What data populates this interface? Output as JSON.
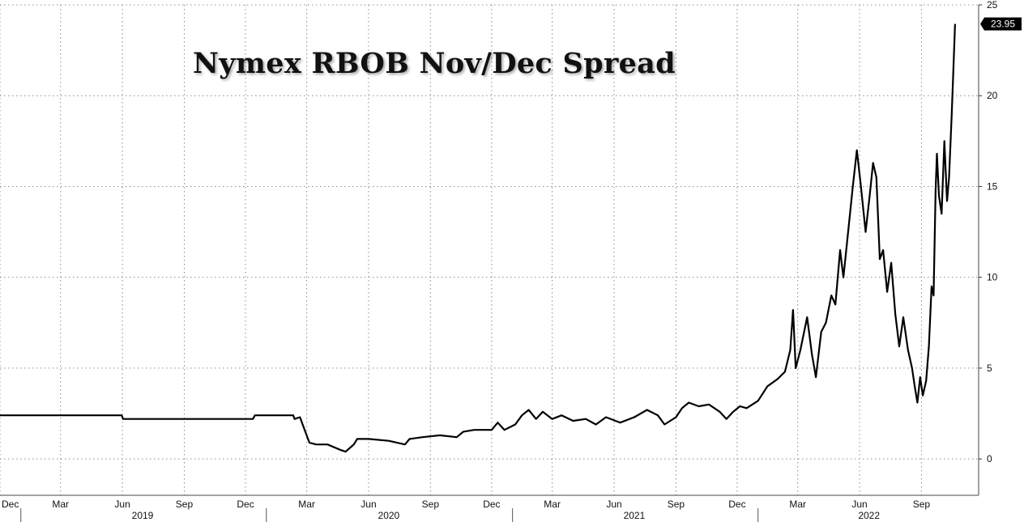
{
  "chart_data": {
    "type": "line",
    "title": "Nymex RBOB Nov/Dec Spread",
    "ylim": [
      -2,
      25
    ],
    "y_ticks": [
      0,
      5,
      10,
      15,
      20,
      25
    ],
    "x_range": [
      "2018-12-01",
      "2022-11-25"
    ],
    "x_month_ticks": [
      {
        "date": "2018-12-01",
        "label": "Dec"
      },
      {
        "date": "2019-03-01",
        "label": "Mar"
      },
      {
        "date": "2019-06-01",
        "label": "Jun"
      },
      {
        "date": "2019-09-01",
        "label": "Sep"
      },
      {
        "date": "2019-12-01",
        "label": "Dec"
      },
      {
        "date": "2020-03-01",
        "label": "Mar"
      },
      {
        "date": "2020-06-01",
        "label": "Jun"
      },
      {
        "date": "2020-09-01",
        "label": "Sep"
      },
      {
        "date": "2020-12-01",
        "label": "Dec"
      },
      {
        "date": "2021-03-01",
        "label": "Mar"
      },
      {
        "date": "2021-06-01",
        "label": "Jun"
      },
      {
        "date": "2021-09-01",
        "label": "Sep"
      },
      {
        "date": "2021-12-01",
        "label": "Dec"
      },
      {
        "date": "2022-03-01",
        "label": "Mar"
      },
      {
        "date": "2022-06-01",
        "label": "Jun"
      },
      {
        "date": "2022-09-01",
        "label": "Sep"
      }
    ],
    "x_year_labels": [
      {
        "label": "2019",
        "center": "2019-07-01"
      },
      {
        "label": "2020",
        "center": "2020-07-01"
      },
      {
        "label": "2021",
        "center": "2021-07-01"
      },
      {
        "label": "2022",
        "center": "2022-06-15"
      }
    ],
    "x_year_separators": [
      "2019-01-01",
      "2020-01-01",
      "2021-01-01",
      "2022-01-01"
    ],
    "grid": true,
    "last_value_label": "23.95",
    "series": [
      {
        "color": "#000000",
        "points": [
          [
            "2018-12-01",
            2.4
          ],
          [
            "2019-05-31",
            2.4
          ],
          [
            "2019-06-02",
            2.2
          ],
          [
            "2019-12-12",
            2.2
          ],
          [
            "2019-12-15",
            2.4
          ],
          [
            "2020-02-10",
            2.4
          ],
          [
            "2020-02-12",
            2.2
          ],
          [
            "2020-02-20",
            2.3
          ],
          [
            "2020-02-25",
            1.8
          ],
          [
            "2020-03-05",
            0.9
          ],
          [
            "2020-03-15",
            0.8
          ],
          [
            "2020-04-01",
            0.8
          ],
          [
            "2020-04-20",
            0.5
          ],
          [
            "2020-04-28",
            0.4
          ],
          [
            "2020-05-10",
            0.8
          ],
          [
            "2020-05-15",
            1.1
          ],
          [
            "2020-06-01",
            1.1
          ],
          [
            "2020-07-01",
            1.0
          ],
          [
            "2020-07-25",
            0.8
          ],
          [
            "2020-08-01",
            1.1
          ],
          [
            "2020-08-20",
            1.2
          ],
          [
            "2020-09-15",
            1.3
          ],
          [
            "2020-10-10",
            1.2
          ],
          [
            "2020-10-20",
            1.5
          ],
          [
            "2020-11-05",
            1.6
          ],
          [
            "2020-12-01",
            1.6
          ],
          [
            "2020-12-10",
            2.0
          ],
          [
            "2020-12-20",
            1.6
          ],
          [
            "2021-01-05",
            1.9
          ],
          [
            "2021-01-15",
            2.4
          ],
          [
            "2021-01-25",
            2.7
          ],
          [
            "2021-02-05",
            2.2
          ],
          [
            "2021-02-15",
            2.6
          ],
          [
            "2021-03-01",
            2.2
          ],
          [
            "2021-03-15",
            2.4
          ],
          [
            "2021-04-01",
            2.1
          ],
          [
            "2021-04-20",
            2.2
          ],
          [
            "2021-05-05",
            1.9
          ],
          [
            "2021-05-20",
            2.3
          ],
          [
            "2021-06-10",
            2.0
          ],
          [
            "2021-07-01",
            2.3
          ],
          [
            "2021-07-20",
            2.7
          ],
          [
            "2021-08-05",
            2.4
          ],
          [
            "2021-08-15",
            1.9
          ],
          [
            "2021-09-01",
            2.3
          ],
          [
            "2021-09-10",
            2.8
          ],
          [
            "2021-09-20",
            3.1
          ],
          [
            "2021-10-05",
            2.9
          ],
          [
            "2021-10-20",
            3.0
          ],
          [
            "2021-11-05",
            2.6
          ],
          [
            "2021-11-15",
            2.2
          ],
          [
            "2021-11-25",
            2.6
          ],
          [
            "2021-12-05",
            2.9
          ],
          [
            "2021-12-15",
            2.8
          ],
          [
            "2022-01-01",
            3.2
          ],
          [
            "2022-01-15",
            4.0
          ],
          [
            "2022-01-30",
            4.4
          ],
          [
            "2022-02-10",
            4.8
          ],
          [
            "2022-02-18",
            6.0
          ],
          [
            "2022-02-22",
            8.2
          ],
          [
            "2022-02-26",
            5.0
          ],
          [
            "2022-03-05",
            6.0
          ],
          [
            "2022-03-15",
            7.8
          ],
          [
            "2022-03-22",
            5.8
          ],
          [
            "2022-03-28",
            4.5
          ],
          [
            "2022-04-05",
            7.0
          ],
          [
            "2022-04-12",
            7.5
          ],
          [
            "2022-04-20",
            9.0
          ],
          [
            "2022-04-26",
            8.5
          ],
          [
            "2022-05-03",
            11.5
          ],
          [
            "2022-05-08",
            10.0
          ],
          [
            "2022-05-15",
            12.5
          ],
          [
            "2022-05-22",
            15.0
          ],
          [
            "2022-05-28",
            17.0
          ],
          [
            "2022-06-03",
            15.0
          ],
          [
            "2022-06-10",
            12.5
          ],
          [
            "2022-06-16",
            14.5
          ],
          [
            "2022-06-21",
            16.3
          ],
          [
            "2022-06-26",
            15.5
          ],
          [
            "2022-07-01",
            11.0
          ],
          [
            "2022-07-06",
            11.5
          ],
          [
            "2022-07-12",
            9.2
          ],
          [
            "2022-07-18",
            10.8
          ],
          [
            "2022-07-24",
            8.0
          ],
          [
            "2022-07-30",
            6.2
          ],
          [
            "2022-08-05",
            7.8
          ],
          [
            "2022-08-12",
            6.0
          ],
          [
            "2022-08-18",
            5.0
          ],
          [
            "2022-08-22",
            4.0
          ],
          [
            "2022-08-26",
            3.1
          ],
          [
            "2022-08-30",
            4.5
          ],
          [
            "2022-09-03",
            3.5
          ],
          [
            "2022-09-08",
            4.3
          ],
          [
            "2022-09-12",
            6.2
          ],
          [
            "2022-09-16",
            9.5
          ],
          [
            "2022-09-19",
            9.0
          ],
          [
            "2022-09-22",
            14.8
          ],
          [
            "2022-09-24",
            16.8
          ],
          [
            "2022-09-27",
            14.5
          ],
          [
            "2022-10-01",
            13.5
          ],
          [
            "2022-10-05",
            17.5
          ],
          [
            "2022-10-09",
            14.2
          ],
          [
            "2022-10-12",
            15.5
          ],
          [
            "2022-10-16",
            19.0
          ],
          [
            "2022-10-19",
            22.0
          ],
          [
            "2022-10-21",
            23.95
          ]
        ]
      }
    ]
  }
}
